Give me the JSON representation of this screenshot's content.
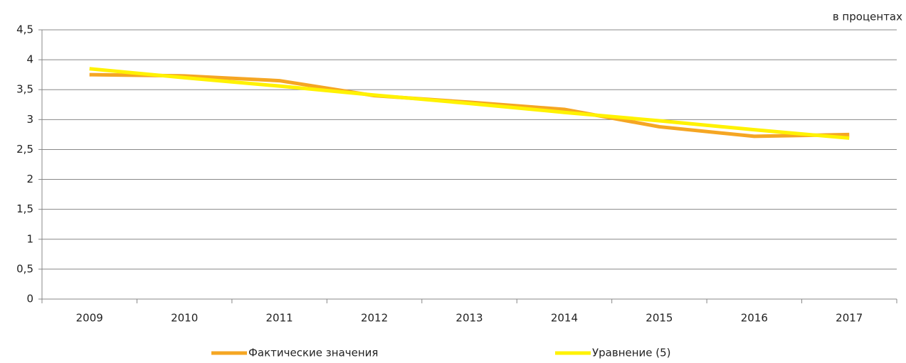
{
  "chart_data": {
    "type": "line",
    "unit_label": "в процентах",
    "categories": [
      "2009",
      "2010",
      "2011",
      "2012",
      "2013",
      "2014",
      "2015",
      "2016",
      "2017"
    ],
    "series": [
      {
        "name": "Фактические значения",
        "color": "#f5a623",
        "values": [
          3.75,
          3.73,
          3.65,
          3.4,
          3.29,
          3.17,
          2.88,
          2.72,
          2.75
        ]
      },
      {
        "name": "Уравнение (5)",
        "color": "#fff200",
        "values": [
          3.85,
          3.7,
          3.56,
          3.41,
          3.27,
          3.12,
          2.98,
          2.83,
          2.69
        ]
      }
    ],
    "ylim": [
      0,
      4.5
    ],
    "yticks": [
      0,
      {
        "value": 0.5,
        "label": "0,5"
      },
      1,
      {
        "value": 1.5,
        "label": "1,5"
      },
      2,
      {
        "value": 2.5,
        "label": "2,5"
      },
      3,
      {
        "value": 3.5,
        "label": "3,5"
      },
      4,
      {
        "value": 4.5,
        "label": "4,5"
      }
    ],
    "grid": true,
    "legend": "bottom"
  }
}
